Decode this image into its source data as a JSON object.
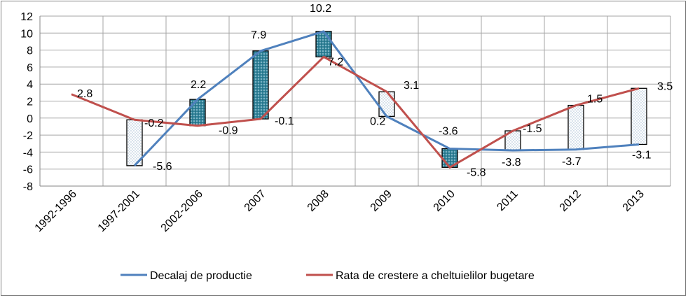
{
  "chart_data": {
    "type": "line",
    "categories": [
      "1992-1996",
      "1997-2001",
      "2002-2006",
      "2007",
      "2008",
      "2009",
      "2010",
      "2011",
      "2012",
      "2013"
    ],
    "series": [
      {
        "name": "Decalaj de productie",
        "color": "#4f81bd",
        "values": [
          null,
          -5.6,
          2.2,
          7.9,
          10.2,
          0.2,
          -3.6,
          -3.8,
          -3.7,
          -3.1
        ]
      },
      {
        "name": "Rata de crestere a cheltuielilor bugetare",
        "color": "#c0504d",
        "values": [
          2.8,
          -0.2,
          -0.9,
          -0.1,
          7.2,
          3.1,
          -5.8,
          -1.5,
          1.5,
          3.5
        ]
      }
    ],
    "data_labels": [
      {
        "category": "1992-1996",
        "series": 1,
        "text": "2.8"
      },
      {
        "category": "1997-2001",
        "series": 1,
        "text": "-0.2"
      },
      {
        "category": "1997-2001",
        "series": 0,
        "text": "-5.6"
      },
      {
        "category": "2002-2006",
        "series": 0,
        "text": "2.2"
      },
      {
        "category": "2002-2006",
        "series": 1,
        "text": "-0.9"
      },
      {
        "category": "2007",
        "series": 0,
        "text": "7.9"
      },
      {
        "category": "2007",
        "series": 1,
        "text": "-0.1"
      },
      {
        "category": "2008",
        "series": 0,
        "text": "10.2"
      },
      {
        "category": "2008",
        "series": 1,
        "text": "7.2"
      },
      {
        "category": "2009",
        "series": 1,
        "text": "3.1"
      },
      {
        "category": "2009",
        "series": 0,
        "text": "0.2"
      },
      {
        "category": "2010",
        "series": 0,
        "text": "-3.6"
      },
      {
        "category": "2010",
        "series": 1,
        "text": "-5.8"
      },
      {
        "category": "2011",
        "series": 1,
        "text": "-1.5"
      },
      {
        "category": "2011",
        "series": 0,
        "text": "-3.8"
      },
      {
        "category": "2012",
        "series": 1,
        "text": "1.5"
      },
      {
        "category": "2012",
        "series": 0,
        "text": "-3.7"
      },
      {
        "category": "2013",
        "series": 1,
        "text": "3.5"
      },
      {
        "category": "2013",
        "series": 0,
        "text": "-3.1"
      }
    ],
    "up_down_bars": {
      "up_color": "#ffffff",
      "down_color": "#31859c",
      "border_color": "#000000"
    },
    "y_ticks": [
      "12",
      "10",
      "8",
      "6",
      "4",
      "2",
      "0",
      "-2",
      "-4",
      "-6",
      "-8"
    ],
    "ylim": [
      -8,
      12
    ],
    "grid": true,
    "legend_position": "bottom",
    "title": "",
    "xlabel": "",
    "ylabel": ""
  }
}
